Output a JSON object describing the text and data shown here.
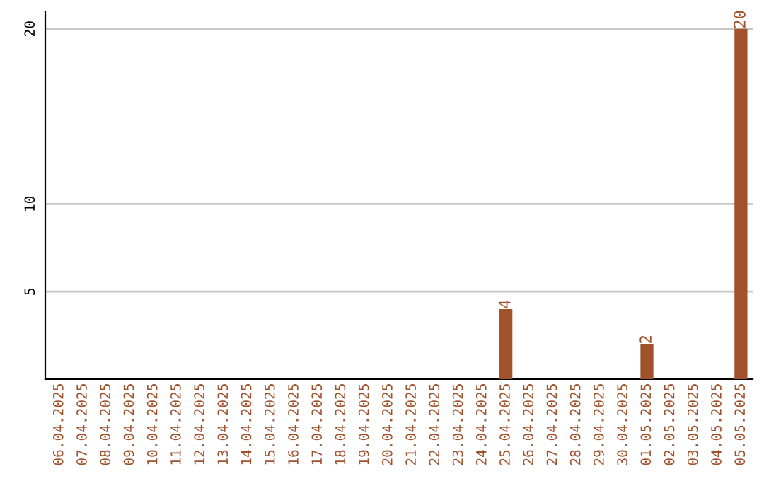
{
  "chart_data": {
    "type": "bar",
    "categories": [
      "06.04.2025",
      "07.04.2025",
      "08.04.2025",
      "09.04.2025",
      "10.04.2025",
      "11.04.2025",
      "12.04.2025",
      "13.04.2025",
      "14.04.2025",
      "15.04.2025",
      "16.04.2025",
      "17.04.2025",
      "18.04.2025",
      "19.04.2025",
      "20.04.2025",
      "21.04.2025",
      "22.04.2025",
      "23.04.2025",
      "24.04.2025",
      "25.04.2025",
      "26.04.2025",
      "27.04.2025",
      "28.04.2025",
      "29.04.2025",
      "30.04.2025",
      "01.05.2025",
      "02.05.2025",
      "03.05.2025",
      "04.05.2025",
      "05.05.2025"
    ],
    "values": [
      0,
      0,
      0,
      0,
      0,
      0,
      0,
      0,
      0,
      0,
      0,
      0,
      0,
      0,
      0,
      0,
      0,
      0,
      0,
      4,
      0,
      0,
      0,
      0,
      0,
      2,
      0,
      0,
      0,
      20
    ],
    "value_labels": [
      null,
      null,
      null,
      null,
      null,
      null,
      null,
      null,
      null,
      null,
      null,
      null,
      null,
      null,
      null,
      null,
      null,
      null,
      null,
      "4",
      null,
      null,
      null,
      null,
      null,
      "2",
      null,
      null,
      null,
      "20"
    ],
    "color": "#a0522d",
    "ylim": [
      0,
      21
    ],
    "yticks": [
      5,
      10,
      20
    ],
    "grid": "y"
  }
}
